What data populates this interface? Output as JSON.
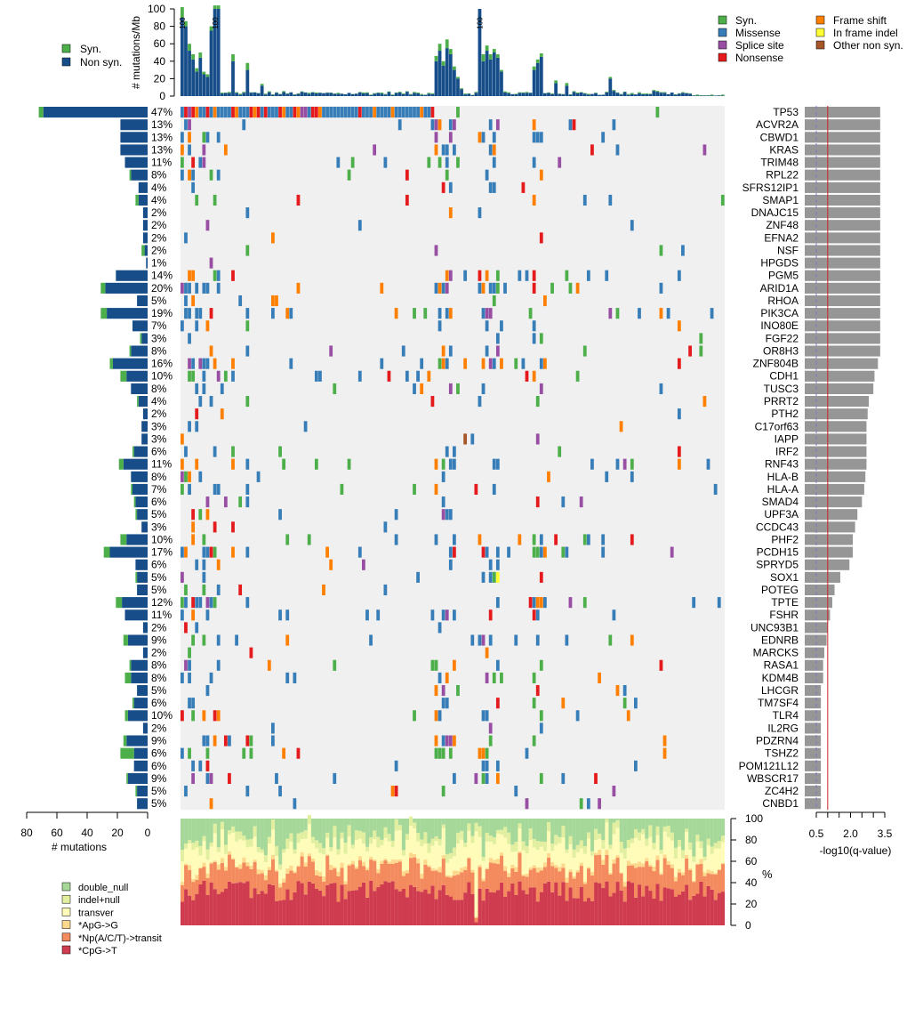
{
  "chart_data": {
    "type": "heatmap",
    "title": "",
    "rate_axis": {
      "label": "# mutations/Mb",
      "ticks": [
        0,
        20,
        40,
        60,
        80,
        100
      ],
      "ylim": [
        0,
        100
      ]
    },
    "count_axis": {
      "label": "# mutations",
      "ticks": [
        80,
        60,
        40,
        20,
        0
      ]
    },
    "q_axis": {
      "label": "-log10(q-value)",
      "ticks": [
        0.5,
        2.0,
        3.5
      ],
      "tick_text": [
        "0.5",
        "2.0",
        "3.5"
      ]
    },
    "spectrum_axis": {
      "label": "%",
      "ticks": [
        0,
        20,
        40,
        60,
        80,
        100
      ]
    },
    "legend_rate": [
      "Syn.",
      "Non syn."
    ],
    "legend_types": [
      {
        "label": "Syn.",
        "color": "#4DAF4A"
      },
      {
        "label": "Missense",
        "color": "#377EB8"
      },
      {
        "label": "Splice site",
        "color": "#984EA3"
      },
      {
        "label": "Nonsense",
        "color": "#E41A1C"
      },
      {
        "label": "Frame shift",
        "color": "#FF7F00"
      },
      {
        "label": "In frame indel",
        "color": "#FFFF33"
      },
      {
        "label": "Other non syn.",
        "color": "#A65628"
      }
    ],
    "legend_spectrum": [
      {
        "label": "double_null",
        "color": "#A6D89A"
      },
      {
        "label": "indel+null",
        "color": "#E2EFA0"
      },
      {
        "label": "transver",
        "color": "#FEFCB8"
      },
      {
        "label": "*ApG->G",
        "color": "#FDD88D"
      },
      {
        "label": "*Np(A/C/T)->transit",
        "color": "#F48B5E"
      },
      {
        "label": "*CpG->T",
        "color": "#D03C4F"
      }
    ],
    "colors": {
      "nonsyn": "#174E8A",
      "syn": "#4DAF4A",
      "qbar": "#969696",
      "grid_bg": "#F0F0F0",
      "threshold": "#CC2222",
      "dashed": "#7A7AC8"
    },
    "genes": [
      "TP53",
      "ACVR2A",
      "CBWD1",
      "KRAS",
      "TRIM48",
      "RPL22",
      "SFRS12IP1",
      "SMAP1",
      "DNAJC15",
      "ZNF48",
      "EFNA2",
      "NSF",
      "HPGDS",
      "PGM5",
      "ARID1A",
      "RHOA",
      "PIK3CA",
      "INO80E",
      "FGF22",
      "OR8H3",
      "ZNF804B",
      "CDH1",
      "TUSC3",
      "PRRT2",
      "PTH2",
      "C17orf63",
      "IAPP",
      "IRF2",
      "RNF43",
      "HLA-B",
      "HLA-A",
      "SMAD4",
      "UPF3A",
      "CCDC43",
      "PHF2",
      "PCDH15",
      "SPRYD5",
      "SOX1",
      "POTEG",
      "TPTE",
      "FSHR",
      "UNC93B1",
      "EDNRB",
      "MARCKS",
      "RASA1",
      "KDM4B",
      "LHCGR",
      "TM7SF4",
      "TLR4",
      "IL2RG",
      "PDZRN4",
      "TSHZ2",
      "POM121L12",
      "WBSCR17",
      "ZC4H2",
      "CNBD1"
    ],
    "percents": [
      "47%",
      "13%",
      "13%",
      "13%",
      "11%",
      "8%",
      "4%",
      "4%",
      "2%",
      "2%",
      "2%",
      "2%",
      "1%",
      "14%",
      "20%",
      "5%",
      "19%",
      "7%",
      "3%",
      "8%",
      "16%",
      "10%",
      "8%",
      "4%",
      "2%",
      "3%",
      "3%",
      "6%",
      "11%",
      "8%",
      "7%",
      "6%",
      "5%",
      "3%",
      "10%",
      "17%",
      "6%",
      "5%",
      "5%",
      "12%",
      "11%",
      "2%",
      "9%",
      "2%",
      "8%",
      "8%",
      "5%",
      "6%",
      "10%",
      "2%",
      "9%",
      "6%",
      "6%",
      "9%",
      "5%",
      "5%"
    ],
    "counts_nonsyn": [
      69,
      18,
      18,
      18,
      15,
      11,
      6,
      6,
      3,
      3,
      3,
      2,
      1,
      21,
      28,
      7,
      27,
      10,
      4,
      11,
      23,
      14,
      11,
      6,
      3,
      4,
      4,
      9,
      16,
      11,
      10,
      8,
      7,
      4,
      14,
      25,
      8,
      7,
      7,
      17,
      15,
      3,
      13,
      3,
      11,
      11,
      7,
      9,
      13,
      3,
      14,
      9,
      9,
      13,
      7,
      7
    ],
    "counts_syn": [
      3,
      0,
      0,
      0,
      0,
      1,
      0,
      2,
      0,
      0,
      0,
      2,
      0,
      0,
      3,
      0,
      4,
      0,
      1,
      1,
      2,
      4,
      0,
      1,
      0,
      0,
      0,
      1,
      3,
      0,
      1,
      1,
      1,
      0,
      4,
      4,
      0,
      1,
      0,
      4,
      0,
      0,
      3,
      0,
      1,
      4,
      0,
      1,
      2,
      0,
      2,
      9,
      0,
      1,
      1,
      0
    ],
    "qvalues": [
      3.3,
      3.3,
      3.3,
      3.3,
      3.3,
      3.3,
      3.3,
      3.3,
      3.3,
      3.3,
      3.3,
      3.3,
      3.3,
      3.3,
      3.3,
      3.3,
      3.3,
      3.3,
      3.3,
      3.3,
      3.2,
      3.05,
      3.0,
      2.8,
      2.75,
      2.7,
      2.7,
      2.7,
      2.7,
      2.65,
      2.6,
      2.5,
      2.3,
      2.2,
      2.1,
      2.1,
      1.95,
      1.55,
      1.3,
      1.2,
      1.1,
      1.0,
      0.95,
      0.85,
      0.8,
      0.8,
      0.7,
      0.7,
      0.7,
      0.7,
      0.7,
      0.7,
      0.7,
      0.7,
      0.7,
      0.7
    ],
    "q_threshold": 1.0,
    "q_dashed": 0.5,
    "num_samples": 150,
    "rate_peaks": [
      [
        0,
        90,
        12
      ],
      [
        1,
        80,
        6
      ],
      [
        2,
        52,
        8
      ],
      [
        3,
        42,
        6
      ],
      [
        4,
        28,
        4
      ],
      [
        5,
        44,
        6
      ],
      [
        6,
        25,
        3
      ],
      [
        7,
        22,
        3
      ],
      [
        8,
        75,
        5
      ],
      [
        9,
        100,
        12
      ],
      [
        10,
        100,
        12
      ],
      [
        11,
        3,
        1
      ],
      [
        14,
        40,
        8
      ],
      [
        18,
        30,
        8
      ],
      [
        22,
        12,
        2
      ],
      [
        70,
        40,
        6
      ],
      [
        71,
        52,
        8
      ],
      [
        72,
        35,
        5
      ],
      [
        73,
        55,
        10
      ],
      [
        74,
        48,
        6
      ],
      [
        75,
        30,
        4
      ],
      [
        76,
        20,
        2
      ],
      [
        77,
        8,
        1
      ],
      [
        82,
        100,
        0
      ],
      [
        83,
        40,
        8
      ],
      [
        84,
        52,
        6
      ],
      [
        85,
        42,
        6
      ],
      [
        86,
        50,
        4
      ],
      [
        87,
        44,
        4
      ],
      [
        88,
        28,
        2
      ],
      [
        97,
        30,
        4
      ],
      [
        98,
        38,
        4
      ],
      [
        99,
        45,
        4
      ],
      [
        103,
        15,
        3
      ],
      [
        106,
        12,
        3
      ],
      [
        118,
        20,
        2
      ],
      [
        119,
        6,
        1
      ],
      [
        130,
        6,
        1
      ],
      [
        131,
        5,
        1
      ]
    ],
    "rate_labels": [
      "100",
      "100",
      "100"
    ]
  }
}
